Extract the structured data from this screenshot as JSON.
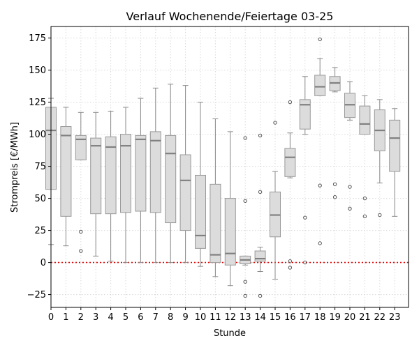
{
  "chart_data": {
    "type": "box",
    "title": "Verlauf Wochenende/Feiertage 03-25",
    "xlabel": "Stunde",
    "ylabel": "Strompreis [€/MWh]",
    "categories": [
      "0",
      "1",
      "2",
      "3",
      "4",
      "5",
      "6",
      "7",
      "8",
      "9",
      "10",
      "11",
      "12",
      "13",
      "14",
      "15",
      "16",
      "17",
      "18",
      "19",
      "20",
      "21",
      "22",
      "23"
    ],
    "ylim": [
      -35,
      184
    ],
    "yticks": [
      -25,
      0,
      25,
      50,
      75,
      100,
      125,
      150,
      175
    ],
    "grid": true,
    "reference_line": {
      "y": 0,
      "style": "dotted",
      "color": "#e00000"
    },
    "boxes": [
      {
        "x": 0,
        "whislo": 14,
        "q1": 57,
        "med": 103,
        "q3": 121,
        "whishi": 128,
        "fliers": []
      },
      {
        "x": 1,
        "whislo": 13,
        "q1": 36,
        "med": 99,
        "q3": 106,
        "whishi": 121,
        "fliers": []
      },
      {
        "x": 2,
        "whislo": 80,
        "q1": 80,
        "med": 96,
        "q3": 99,
        "whishi": 117,
        "fliers": [
          24,
          9
        ]
      },
      {
        "x": 3,
        "whislo": 5,
        "q1": 38,
        "med": 91,
        "q3": 97,
        "whishi": 117,
        "fliers": []
      },
      {
        "x": 4,
        "whislo": 1,
        "q1": 38,
        "med": 90,
        "q3": 98,
        "whishi": 118,
        "fliers": []
      },
      {
        "x": 5,
        "whislo": 0,
        "q1": 39,
        "med": 91,
        "q3": 100,
        "whishi": 121,
        "fliers": []
      },
      {
        "x": 6,
        "whislo": 0,
        "q1": 40,
        "med": 96,
        "q3": 99,
        "whishi": 128,
        "fliers": []
      },
      {
        "x": 7,
        "whislo": 0,
        "q1": 39,
        "med": 95,
        "q3": 102,
        "whishi": 136,
        "fliers": []
      },
      {
        "x": 8,
        "whislo": 0,
        "q1": 31,
        "med": 85,
        "q3": 99,
        "whishi": 139,
        "fliers": []
      },
      {
        "x": 9,
        "whislo": 0,
        "q1": 25,
        "med": 64,
        "q3": 84,
        "whishi": 138,
        "fliers": []
      },
      {
        "x": 10,
        "whislo": -3,
        "q1": 11,
        "med": 21,
        "q3": 68,
        "whishi": 125,
        "fliers": []
      },
      {
        "x": 11,
        "whislo": -11,
        "q1": 0,
        "med": 6,
        "q3": 61,
        "whishi": 112,
        "fliers": []
      },
      {
        "x": 12,
        "whislo": -18,
        "q1": -2,
        "med": 7,
        "q3": 50,
        "whishi": 102,
        "fliers": []
      },
      {
        "x": 13,
        "whislo": -2,
        "q1": -1,
        "med": 2,
        "q3": 5,
        "whishi": 5,
        "fliers": [
          97,
          48,
          -15,
          -26
        ]
      },
      {
        "x": 14,
        "whislo": -7,
        "q1": 1,
        "med": 3,
        "q3": 9,
        "whishi": 12,
        "fliers": [
          99,
          55,
          -26
        ]
      },
      {
        "x": 15,
        "whislo": -13,
        "q1": 20,
        "med": 37,
        "q3": 55,
        "whishi": 71,
        "fliers": [
          109
        ]
      },
      {
        "x": 16,
        "whislo": 66,
        "q1": 67,
        "med": 82,
        "q3": 89,
        "whishi": 101,
        "fliers": [
          125,
          1,
          -4
        ]
      },
      {
        "x": 17,
        "whislo": 100,
        "q1": 104,
        "med": 123,
        "q3": 127,
        "whishi": 145,
        "fliers": [
          35,
          0
        ]
      },
      {
        "x": 18,
        "whislo": 130,
        "q1": 130,
        "med": 137,
        "q3": 146,
        "whishi": 159,
        "fliers": [
          174,
          60,
          15
        ]
      },
      {
        "x": 19,
        "whislo": 133,
        "q1": 134,
        "med": 140,
        "q3": 145,
        "whishi": 152,
        "fliers": [
          61,
          51
        ]
      },
      {
        "x": 20,
        "whislo": 111,
        "q1": 113,
        "med": 123,
        "q3": 132,
        "whishi": 141,
        "fliers": [
          59,
          42
        ]
      },
      {
        "x": 21,
        "whislo": 100,
        "q1": 100,
        "med": 108,
        "q3": 122,
        "whishi": 130,
        "fliers": [
          50,
          36
        ]
      },
      {
        "x": 22,
        "whislo": 62,
        "q1": 87,
        "med": 103,
        "q3": 119,
        "whishi": 127,
        "fliers": [
          37
        ]
      },
      {
        "x": 23,
        "whislo": 36,
        "q1": 71,
        "med": 97,
        "q3": 111,
        "whishi": 120,
        "fliers": []
      }
    ],
    "colors": {
      "box_fill": "#dcdcdc",
      "box_edge": "#999999",
      "median": "#808080",
      "whisker": "#888888",
      "grid": "#d9d9d9",
      "zero_line": "#e00000"
    }
  }
}
